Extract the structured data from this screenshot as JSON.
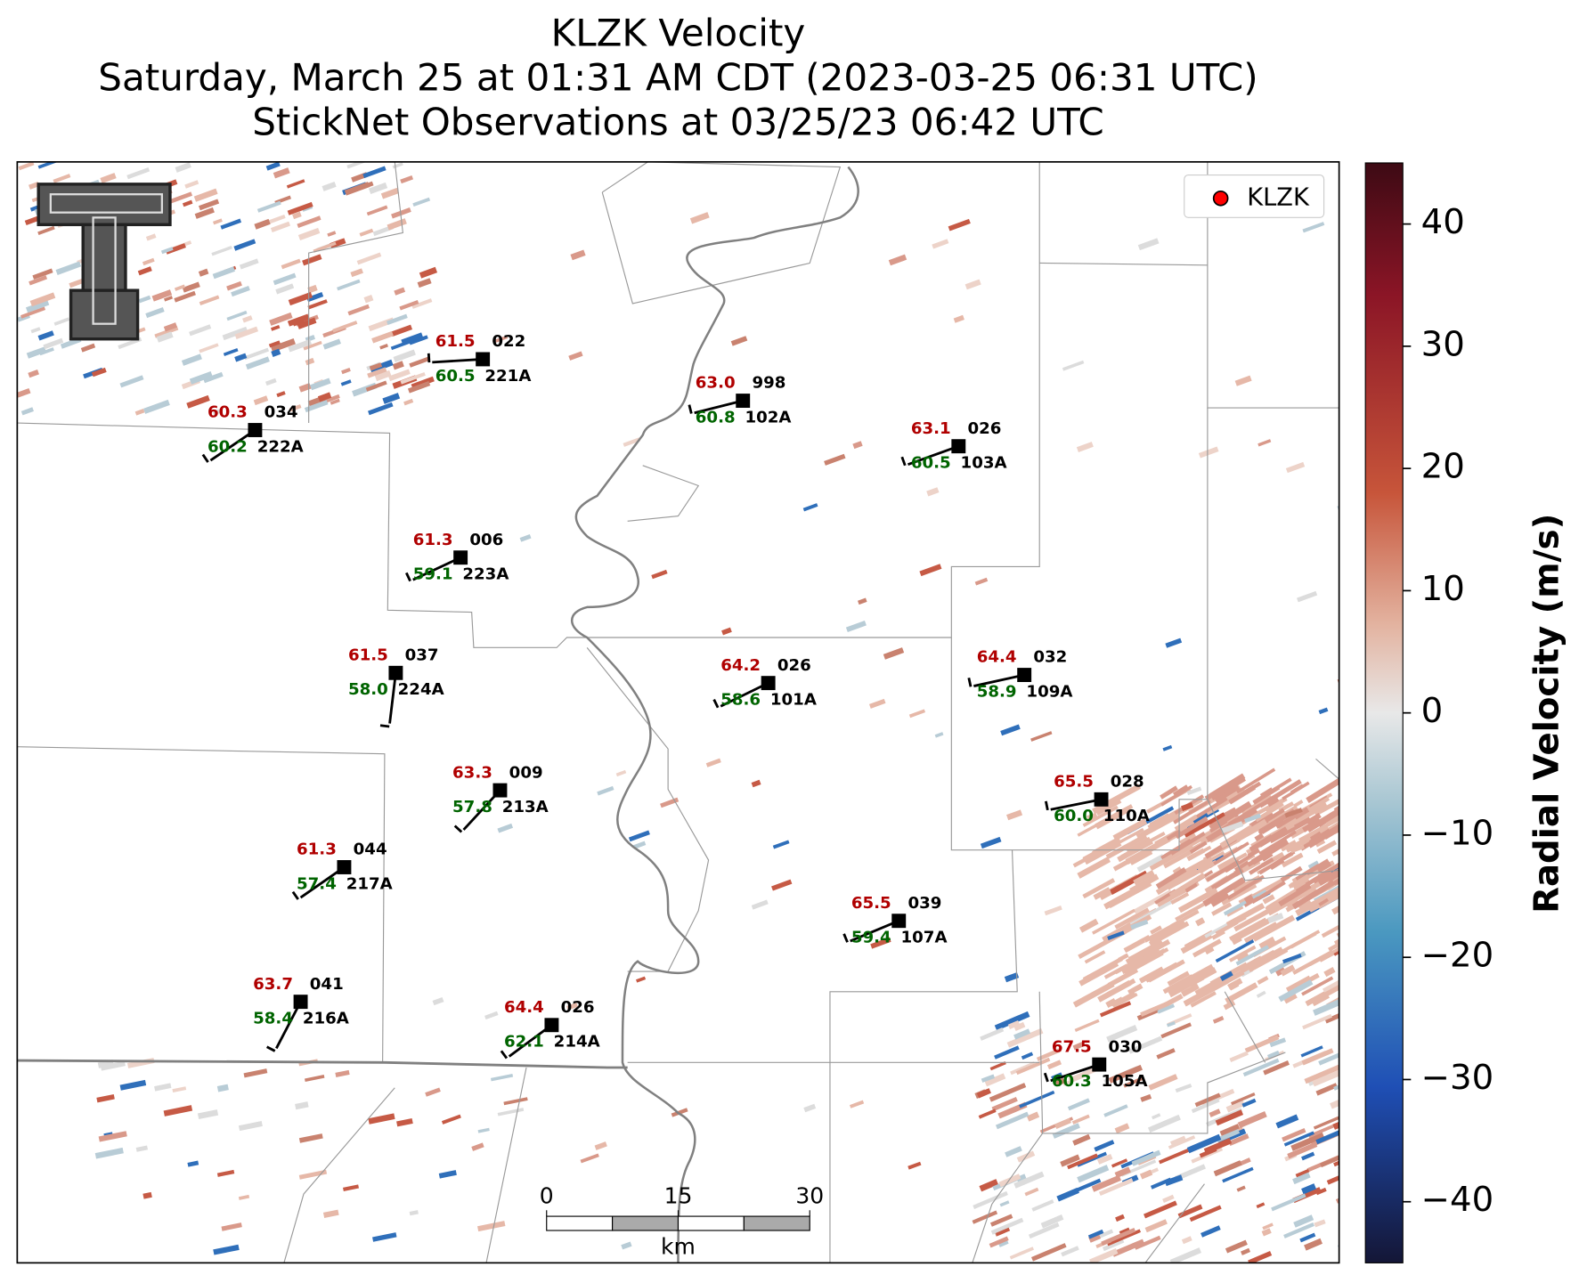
{
  "header": {
    "title": "KLZK Velocity",
    "subtitle": "Saturday, March 25 at 01:31 AM CDT (2023-03-25 06:31 UTC)",
    "subtitle2": "StickNet Observations at 03/25/23 06:42 UTC"
  },
  "legend": {
    "label": "KLZK",
    "color": "#ff0000"
  },
  "stations": [
    {
      "id": "221A",
      "temp": "61.5",
      "dewpoint": "60.5",
      "code": "022"
    },
    {
      "id": "222A",
      "temp": "60.3",
      "dewpoint": "60.2",
      "code": "034"
    },
    {
      "id": "102A",
      "temp": "63.0",
      "dewpoint": "60.8",
      "code": "998"
    },
    {
      "id": "103A",
      "temp": "63.1",
      "dewpoint": "60.5",
      "code": "026"
    },
    {
      "id": "223A",
      "temp": "61.3",
      "dewpoint": "59.1",
      "code": "006"
    },
    {
      "id": "224A",
      "temp": "61.5",
      "dewpoint": "58.0",
      "code": "037"
    },
    {
      "id": "101A",
      "temp": "64.2",
      "dewpoint": "58.6",
      "code": "026"
    },
    {
      "id": "109A",
      "temp": "64.4",
      "dewpoint": "58.9",
      "code": "032"
    },
    {
      "id": "213A",
      "temp": "63.3",
      "dewpoint": "57.8",
      "code": "009"
    },
    {
      "id": "110A",
      "temp": "65.5",
      "dewpoint": "60.0",
      "code": "028"
    },
    {
      "id": "217A",
      "temp": "61.3",
      "dewpoint": "57.4",
      "code": "044"
    },
    {
      "id": "107A",
      "temp": "65.5",
      "dewpoint": "59.4",
      "code": "039"
    },
    {
      "id": "216A",
      "temp": "63.7",
      "dewpoint": "58.4",
      "code": "041"
    },
    {
      "id": "214A",
      "temp": "64.4",
      "dewpoint": "62.1",
      "code": "026"
    },
    {
      "id": "105A",
      "temp": "67.5",
      "dewpoint": "60.3",
      "code": "030"
    }
  ],
  "scale_bar": {
    "ticks": [
      0,
      15,
      30
    ],
    "unit": "km"
  },
  "colorbar": {
    "label": "Radial Velocity (m/s)",
    "lim": [
      -45,
      45
    ],
    "ticks": [
      {
        "value": -40,
        "label": "−40"
      },
      {
        "value": -30,
        "label": "−30"
      },
      {
        "value": -20,
        "label": "−20"
      },
      {
        "value": -10,
        "label": "−10"
      },
      0,
      10,
      20,
      30,
      40
    ]
  }
}
